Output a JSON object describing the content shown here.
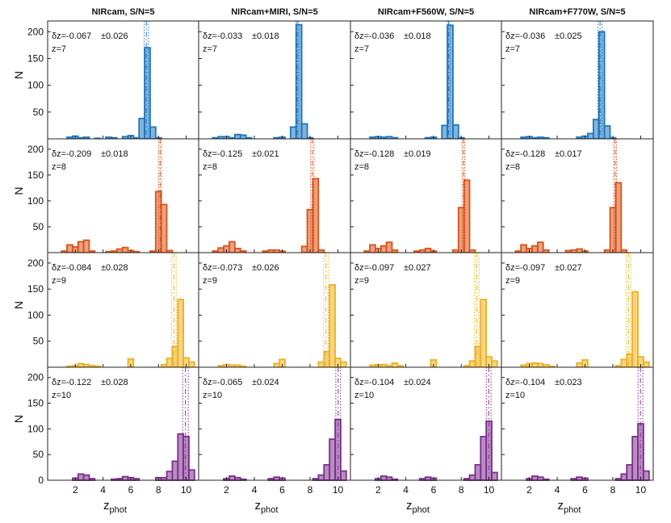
{
  "figure": {
    "ylabel": "N",
    "xlabel_main": "z",
    "xlabel_sub": "phot",
    "column_titles": [
      "NIRcam, S/N=5",
      "NIRcam+MIRI, S/N=5",
      "NIRcam+F560W, S/N=5",
      "NIRcam+F770W, S/N=5"
    ],
    "row_labels": [
      "z=7",
      "z=8",
      "z=9",
      "z=10"
    ],
    "row_colors": [
      "#1f77bd",
      "#d95319",
      "#edb120",
      "#7e2f8e"
    ],
    "x_ticks": [
      2,
      4,
      6,
      8,
      10
    ],
    "y_ticks_rows_1_3": [
      50,
      100,
      150,
      200
    ],
    "y_ticks_row_4": [
      0,
      50,
      100,
      150,
      200
    ]
  },
  "chart_data": {
    "type": "bar",
    "title": "",
    "xlabel": "z_phot",
    "ylabel": "N",
    "xlim": [
      0,
      10.9
    ],
    "ylim": [
      0,
      220
    ],
    "bin_width": 0.4,
    "panels": [
      {
        "row": 0,
        "col": 0,
        "column_title": "NIRcam, S/N=5",
        "z_true": 7,
        "annot_dz": "δz=-0.067",
        "annot_err": "±0.026",
        "mean": 7.12,
        "err_low": 6.97,
        "err_high": 7.27,
        "bins": [
          [
            1.4,
            3
          ],
          [
            1.8,
            5
          ],
          [
            2.2,
            2
          ],
          [
            2.6,
            3
          ],
          [
            3.4,
            1
          ],
          [
            4.2,
            3
          ],
          [
            4.6,
            2
          ],
          [
            5.4,
            4
          ],
          [
            5.8,
            6
          ],
          [
            6.2,
            2
          ],
          [
            6.6,
            38
          ],
          [
            7.0,
            170
          ],
          [
            7.4,
            22
          ],
          [
            7.8,
            2
          ]
        ]
      },
      {
        "row": 0,
        "col": 1,
        "column_title": "NIRcam+MIRI, S/N=5",
        "z_true": 7,
        "annot_dz": "δz=-0.033",
        "annot_err": "±0.018",
        "mean": 7.08,
        "err_low": 6.98,
        "err_high": 7.18,
        "bins": [
          [
            1.0,
            2
          ],
          [
            1.4,
            4
          ],
          [
            1.8,
            4
          ],
          [
            2.2,
            2
          ],
          [
            2.6,
            8
          ],
          [
            3.0,
            7
          ],
          [
            3.4,
            2
          ],
          [
            5.4,
            2
          ],
          [
            5.8,
            3
          ],
          [
            6.6,
            22
          ],
          [
            7.0,
            213
          ],
          [
            7.4,
            28
          ],
          [
            7.8,
            2
          ]
        ]
      },
      {
        "row": 0,
        "col": 2,
        "column_title": "NIRcam+F560W, S/N=5",
        "z_true": 7,
        "annot_dz": "δz=-0.036",
        "annot_err": "±0.018",
        "mean": 7.08,
        "err_low": 6.98,
        "err_high": 7.18,
        "bins": [
          [
            1.4,
            3
          ],
          [
            1.8,
            4
          ],
          [
            2.2,
            3
          ],
          [
            2.6,
            4
          ],
          [
            3.0,
            2
          ],
          [
            5.4,
            2
          ],
          [
            5.8,
            3
          ],
          [
            6.6,
            25
          ],
          [
            7.0,
            212
          ],
          [
            7.4,
            26
          ],
          [
            7.8,
            2
          ]
        ]
      },
      {
        "row": 0,
        "col": 3,
        "column_title": "NIRcam+F770W, S/N=5",
        "z_true": 7,
        "annot_dz": "δz=-0.036",
        "annot_err": "±0.025",
        "mean": 7.08,
        "err_low": 6.93,
        "err_high": 7.23,
        "bins": [
          [
            1.4,
            3
          ],
          [
            1.8,
            4
          ],
          [
            2.2,
            2
          ],
          [
            2.6,
            3
          ],
          [
            3.0,
            2
          ],
          [
            5.4,
            3
          ],
          [
            5.8,
            5
          ],
          [
            6.2,
            10
          ],
          [
            6.6,
            36
          ],
          [
            7.0,
            200
          ],
          [
            7.4,
            24
          ],
          [
            7.8,
            2
          ]
        ]
      },
      {
        "row": 1,
        "col": 0,
        "column_title": "NIRcam, S/N=5",
        "z_true": 8,
        "annot_dz": "δz=-0.209",
        "annot_err": "±0.018",
        "mean": 8.12,
        "err_low": 8.02,
        "err_high": 8.22,
        "bins": [
          [
            1.0,
            3
          ],
          [
            1.4,
            15
          ],
          [
            1.8,
            11
          ],
          [
            2.2,
            21
          ],
          [
            2.6,
            24
          ],
          [
            3.0,
            3
          ],
          [
            4.2,
            2
          ],
          [
            4.6,
            3
          ],
          [
            5.0,
            7
          ],
          [
            5.4,
            10
          ],
          [
            5.8,
            4
          ],
          [
            6.2,
            2
          ],
          [
            7.4,
            3
          ],
          [
            7.8,
            118
          ],
          [
            8.2,
            93
          ],
          [
            8.6,
            4
          ]
        ]
      },
      {
        "row": 1,
        "col": 1,
        "column_title": "NIRcam+MIRI, S/N=5",
        "z_true": 8,
        "annot_dz": "δz=-0.125",
        "annot_err": "±0.021",
        "mean": 8.16,
        "err_low": 8.04,
        "err_high": 8.28,
        "bins": [
          [
            1.0,
            3
          ],
          [
            1.4,
            9
          ],
          [
            1.8,
            13
          ],
          [
            2.2,
            21
          ],
          [
            2.6,
            8
          ],
          [
            3.0,
            3
          ],
          [
            4.6,
            3
          ],
          [
            5.0,
            5
          ],
          [
            5.4,
            5
          ],
          [
            5.8,
            3
          ],
          [
            7.4,
            12
          ],
          [
            7.8,
            83
          ],
          [
            8.2,
            143
          ],
          [
            8.6,
            5
          ]
        ]
      },
      {
        "row": 1,
        "col": 2,
        "column_title": "NIRcam+F560W, S/N=5",
        "z_true": 8,
        "annot_dz": "δz=-0.128",
        "annot_err": "±0.019",
        "mean": 8.16,
        "err_low": 8.06,
        "err_high": 8.26,
        "bins": [
          [
            1.0,
            3
          ],
          [
            1.4,
            15
          ],
          [
            1.8,
            8
          ],
          [
            2.2,
            13
          ],
          [
            2.6,
            20
          ],
          [
            3.0,
            5
          ],
          [
            4.6,
            3
          ],
          [
            5.0,
            5
          ],
          [
            5.4,
            8
          ],
          [
            5.8,
            3
          ],
          [
            7.4,
            5
          ],
          [
            7.8,
            87
          ],
          [
            8.2,
            140
          ],
          [
            8.6,
            5
          ]
        ]
      },
      {
        "row": 1,
        "col": 3,
        "column_title": "NIRcam+F770W, S/N=5",
        "z_true": 8,
        "annot_dz": "δz=-0.128",
        "annot_err": "±0.017",
        "mean": 8.16,
        "err_low": 8.06,
        "err_high": 8.26,
        "bins": [
          [
            1.0,
            3
          ],
          [
            1.4,
            15
          ],
          [
            1.8,
            8
          ],
          [
            2.2,
            13
          ],
          [
            2.6,
            20
          ],
          [
            3.0,
            5
          ],
          [
            4.6,
            4
          ],
          [
            5.0,
            5
          ],
          [
            5.4,
            7
          ],
          [
            5.8,
            3
          ],
          [
            7.4,
            5
          ],
          [
            7.8,
            87
          ],
          [
            8.2,
            135
          ],
          [
            8.6,
            5
          ]
        ]
      },
      {
        "row": 2,
        "col": 0,
        "column_title": "NIRcam, S/N=5",
        "z_true": 9,
        "annot_dz": "δz=-0.084",
        "annot_err": "±0.028",
        "mean": 9.12,
        "err_low": 8.96,
        "err_high": 9.28,
        "bins": [
          [
            1.4,
            2
          ],
          [
            1.8,
            3
          ],
          [
            2.2,
            7
          ],
          [
            2.6,
            5
          ],
          [
            3.0,
            3
          ],
          [
            3.4,
            2
          ],
          [
            5.8,
            16
          ],
          [
            8.2,
            5
          ],
          [
            8.6,
            17
          ],
          [
            9.0,
            40
          ],
          [
            9.4,
            130
          ],
          [
            9.8,
            18
          ],
          [
            10.2,
            10
          ]
        ]
      },
      {
        "row": 2,
        "col": 1,
        "column_title": "NIRcam+MIRI, S/N=5",
        "z_true": 9,
        "annot_dz": "δz=-0.073",
        "annot_err": "±0.026",
        "mean": 9.14,
        "err_low": 8.98,
        "err_high": 9.3,
        "bins": [
          [
            1.4,
            3
          ],
          [
            1.8,
            5
          ],
          [
            2.2,
            4
          ],
          [
            2.6,
            4
          ],
          [
            3.0,
            2
          ],
          [
            5.4,
            7
          ],
          [
            5.8,
            15
          ],
          [
            8.6,
            10
          ],
          [
            9.0,
            30
          ],
          [
            9.4,
            158
          ],
          [
            9.8,
            17
          ],
          [
            10.2,
            10
          ]
        ]
      },
      {
        "row": 2,
        "col": 2,
        "column_title": "NIRcam+F560W, S/N=5",
        "z_true": 9,
        "annot_dz": "δz=-0.097",
        "annot_err": "±0.027",
        "mean": 9.12,
        "err_low": 8.96,
        "err_high": 9.28,
        "bins": [
          [
            1.4,
            4
          ],
          [
            1.8,
            5
          ],
          [
            2.2,
            5
          ],
          [
            2.6,
            3
          ],
          [
            3.0,
            8
          ],
          [
            3.4,
            3
          ],
          [
            5.8,
            14
          ],
          [
            8.2,
            3
          ],
          [
            8.6,
            12
          ],
          [
            9.0,
            40
          ],
          [
            9.4,
            130
          ],
          [
            9.8,
            20
          ],
          [
            10.2,
            12
          ]
        ]
      },
      {
        "row": 2,
        "col": 3,
        "column_title": "NIRcam+F770W, S/N=5",
        "z_true": 9,
        "annot_dz": "δz=-0.097",
        "annot_err": "±0.027",
        "mean": 9.12,
        "err_low": 8.96,
        "err_high": 9.28,
        "bins": [
          [
            1.4,
            4
          ],
          [
            1.8,
            7
          ],
          [
            2.2,
            8
          ],
          [
            2.6,
            7
          ],
          [
            3.0,
            5
          ],
          [
            3.4,
            2
          ],
          [
            5.4,
            8
          ],
          [
            5.8,
            14
          ],
          [
            8.2,
            3
          ],
          [
            8.6,
            15
          ],
          [
            9.0,
            25
          ],
          [
            9.4,
            145
          ],
          [
            9.8,
            20
          ],
          [
            10.2,
            10
          ]
        ]
      },
      {
        "row": 3,
        "col": 0,
        "column_title": "NIRcam, S/N=5",
        "z_true": 10,
        "annot_dz": "δz=-0.122",
        "annot_err": "±0.028",
        "mean": 9.95,
        "err_low": 9.75,
        "err_high": 10.15,
        "bins": [
          [
            1.8,
            4
          ],
          [
            2.2,
            12
          ],
          [
            2.6,
            10
          ],
          [
            3.0,
            3
          ],
          [
            4.6,
            2
          ],
          [
            5.0,
            3
          ],
          [
            5.4,
            7
          ],
          [
            5.8,
            5
          ],
          [
            6.2,
            3
          ],
          [
            7.8,
            5
          ],
          [
            8.2,
            5
          ],
          [
            8.6,
            17
          ],
          [
            9.0,
            37
          ],
          [
            9.4,
            90
          ],
          [
            9.8,
            85
          ],
          [
            10.2,
            20
          ]
        ]
      },
      {
        "row": 3,
        "col": 1,
        "column_title": "NIRcam+MIRI, S/N=5",
        "z_true": 10,
        "annot_dz": "δz=-0.065",
        "annot_err": "±0.024",
        "mean": 10.02,
        "err_low": 9.85,
        "err_high": 10.19,
        "bins": [
          [
            1.8,
            3
          ],
          [
            2.2,
            8
          ],
          [
            2.6,
            5
          ],
          [
            3.0,
            2
          ],
          [
            5.0,
            3
          ],
          [
            5.4,
            6
          ],
          [
            5.8,
            4
          ],
          [
            8.2,
            3
          ],
          [
            8.6,
            10
          ],
          [
            9.0,
            30
          ],
          [
            9.4,
            80
          ],
          [
            9.8,
            118
          ],
          [
            10.2,
            18
          ]
        ]
      },
      {
        "row": 3,
        "col": 2,
        "column_title": "NIRcam+F560W, S/N=5",
        "z_true": 10,
        "annot_dz": "δz=-0.104",
        "annot_err": "±0.024",
        "mean": 9.98,
        "err_low": 9.81,
        "err_high": 10.15,
        "bins": [
          [
            1.8,
            3
          ],
          [
            2.2,
            8
          ],
          [
            2.6,
            6
          ],
          [
            3.0,
            2
          ],
          [
            5.0,
            3
          ],
          [
            5.4,
            6
          ],
          [
            5.8,
            4
          ],
          [
            8.2,
            3
          ],
          [
            8.6,
            10
          ],
          [
            9.0,
            30
          ],
          [
            9.4,
            85
          ],
          [
            9.8,
            115
          ],
          [
            10.2,
            15
          ]
        ]
      },
      {
        "row": 3,
        "col": 3,
        "column_title": "NIRcam+F770W, S/N=5",
        "z_true": 10,
        "annot_dz": "δz=-0.104",
        "annot_err": "±0.023",
        "mean": 9.98,
        "err_low": 9.81,
        "err_high": 10.15,
        "bins": [
          [
            1.8,
            3
          ],
          [
            2.2,
            8
          ],
          [
            2.6,
            6
          ],
          [
            3.0,
            2
          ],
          [
            5.0,
            3
          ],
          [
            5.4,
            6
          ],
          [
            5.8,
            4
          ],
          [
            8.2,
            3
          ],
          [
            8.6,
            12
          ],
          [
            9.0,
            30
          ],
          [
            9.4,
            85
          ],
          [
            9.8,
            110
          ],
          [
            10.2,
            18
          ]
        ]
      }
    ]
  }
}
